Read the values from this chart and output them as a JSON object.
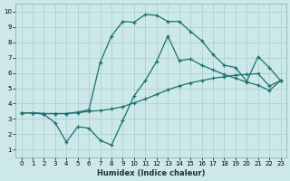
{
  "xlabel": "Humidex (Indice chaleur)",
  "background_color": "#cde8e8",
  "grid_color": "#aacccc",
  "line_color": "#1a7070",
  "xlim": [
    -0.5,
    23.5
  ],
  "ylim": [
    0.5,
    10.5
  ],
  "xticks": [
    0,
    1,
    2,
    3,
    4,
    5,
    6,
    7,
    8,
    9,
    10,
    11,
    12,
    13,
    14,
    15,
    16,
    17,
    18,
    19,
    20,
    21,
    22,
    23
  ],
  "yticks": [
    1,
    2,
    3,
    4,
    5,
    6,
    7,
    8,
    9,
    10
  ],
  "line_top_x": [
    0,
    1,
    2,
    3,
    4,
    5,
    6,
    7,
    8,
    9,
    10,
    11,
    12,
    13,
    14,
    15,
    16,
    17,
    18,
    19,
    20,
    21,
    22,
    23
  ],
  "line_top_y": [
    3.4,
    3.4,
    3.35,
    3.35,
    3.35,
    3.4,
    3.5,
    3.55,
    3.65,
    3.8,
    4.05,
    4.3,
    4.6,
    4.9,
    5.15,
    5.35,
    5.5,
    5.65,
    5.75,
    5.85,
    5.9,
    5.95,
    5.15,
    5.5
  ],
  "line_mid_x": [
    0,
    1,
    2,
    3,
    4,
    5,
    6,
    7,
    8,
    9,
    10,
    11,
    12,
    13,
    14,
    15,
    16,
    17,
    18,
    19,
    20,
    21,
    22,
    23
  ],
  "line_mid_y": [
    3.4,
    3.4,
    3.35,
    3.35,
    3.35,
    3.45,
    3.6,
    6.7,
    8.4,
    9.35,
    9.3,
    9.8,
    9.75,
    9.35,
    9.35,
    8.7,
    8.1,
    7.2,
    6.5,
    6.35,
    5.45,
    7.05,
    6.35,
    5.5
  ],
  "line_bot_x": [
    0,
    1,
    2,
    3,
    4,
    5,
    6,
    7,
    8,
    9,
    10,
    11,
    12,
    13,
    14,
    15,
    16,
    17,
    18,
    19,
    20,
    21,
    22,
    23
  ],
  "line_bot_y": [
    3.4,
    3.4,
    3.3,
    2.75,
    1.5,
    2.5,
    2.4,
    1.6,
    1.3,
    2.9,
    4.5,
    5.5,
    6.75,
    8.4,
    6.8,
    6.9,
    6.5,
    6.2,
    5.9,
    5.65,
    5.4,
    5.2,
    4.85,
    5.5
  ]
}
